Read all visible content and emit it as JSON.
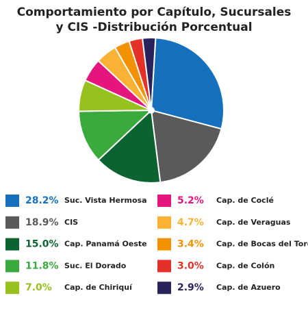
{
  "chart_data": {
    "type": "pie",
    "title": [
      "Comportamiento por Capítulo, Sucursales",
      "y CIS -Distribución Porcentual"
    ],
    "categories": [
      "Suc. Vista Hermosa",
      "CIS",
      "Cap. Panamá Oeste",
      "Suc. El Dorado",
      "Cap. de Chiriquí",
      "Cap. de Coclé",
      "Cap. de Veraguas",
      "Cap. de Bocas del Toro",
      "Cap. de Colón",
      "Cap. de Azuero"
    ],
    "values": [
      28.2,
      18.9,
      15.0,
      11.8,
      7.0,
      5.2,
      4.7,
      3.4,
      3.0,
      2.9
    ],
    "value_labels": [
      "28.2%",
      "18.9%",
      "15.0%",
      "11.8%",
      "7.0%",
      "5.2%",
      "4.7%",
      "3.4%",
      "3.0%",
      "2.9%"
    ],
    "colors": [
      "#1570bd",
      "#5a5a5a",
      "#0b6331",
      "#3aaa3c",
      "#97c11f",
      "#e5157e",
      "#f9b233",
      "#f39200",
      "#e43027",
      "#29235c"
    ]
  }
}
